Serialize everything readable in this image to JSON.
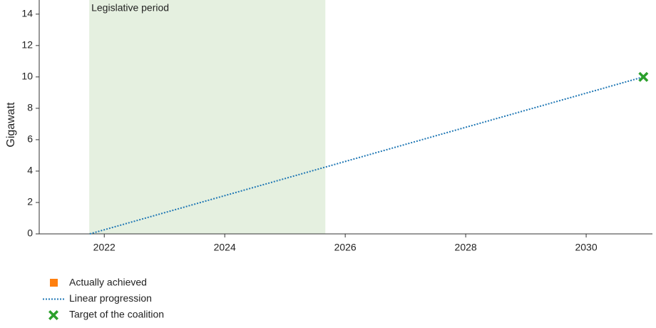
{
  "chart_data": {
    "type": "line",
    "y_label": "Gigawatt",
    "xlim": [
      2020.92,
      2031.1
    ],
    "xticks": [
      2022,
      2024,
      2026,
      2028,
      2030
    ],
    "ylim": [
      0,
      14.9
    ],
    "yticks": [
      0,
      2,
      4,
      6,
      8,
      10,
      12,
      14
    ],
    "shaded_region": {
      "label": "Legislative period",
      "x": [
        2021.75,
        2025.67
      ],
      "color": "#e5f0e0"
    },
    "series": [
      {
        "name": "Actually achieved",
        "color": "#ff7f0e",
        "marker": "square",
        "x": [],
        "values": []
      },
      {
        "name": "Linear progression",
        "color": "#1f77b4",
        "marker": "dotted-line",
        "x": [
          2021.76,
          2030.95
        ],
        "values": [
          0,
          10
        ]
      },
      {
        "name": "Target of the coalition",
        "color": "#2ca02c",
        "marker": "cross",
        "x": [
          2030.95
        ],
        "values": [
          10
        ]
      }
    ]
  }
}
